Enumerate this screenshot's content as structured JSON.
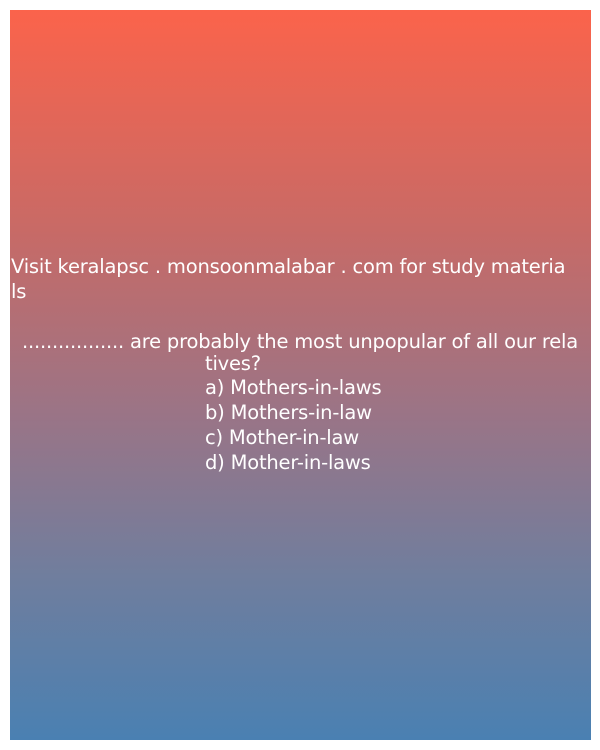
{
  "promo": {
    "line1": "Visit keralapsc . monsoonmalabar . com for study materia",
    "line2": "ls"
  },
  "question": {
    "line1": "................. are probably the most unpopular of all our rela",
    "line2": "tives?"
  },
  "options": [
    {
      "label": "a) Mothers-in-laws"
    },
    {
      "label": "b) Mothers-in-law"
    },
    {
      "label": "c) Mother-in-law"
    },
    {
      "label": "d) Mother-in-laws"
    }
  ],
  "colors": {
    "gradient_top": "#fb634b",
    "gradient_bottom": "#4a80b2",
    "text": "#ffffff"
  }
}
